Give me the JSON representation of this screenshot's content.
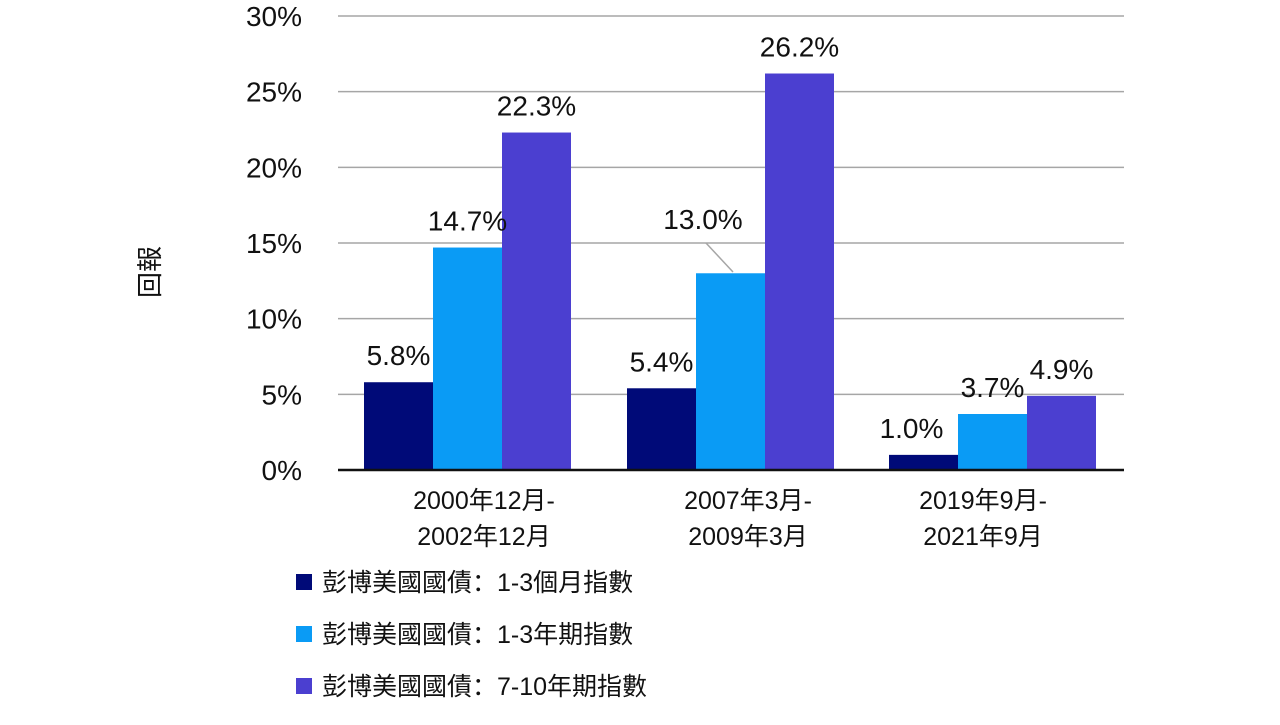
{
  "chart_data": {
    "type": "bar",
    "title": "",
    "xlabel": "",
    "ylabel": "回報",
    "ylim": [
      0,
      30
    ],
    "yticks": [
      0,
      5,
      10,
      15,
      20,
      25,
      30
    ],
    "ytick_labels": [
      "0%",
      "5%",
      "10%",
      "15%",
      "20%",
      "25%",
      "30%"
    ],
    "grid": true,
    "legend_position": "bottom",
    "categories": [
      [
        "2000年12月-",
        "2002年12月"
      ],
      [
        "2007年3月-",
        "2009年3月"
      ],
      [
        "2019年9月-",
        "2021年9月"
      ]
    ],
    "series": [
      {
        "name": "彭博美國國債：1-3個月指數",
        "color": "#000a78",
        "values": [
          5.8,
          5.4,
          1.0
        ],
        "labels": [
          "5.8%",
          "5.4%",
          "1.0%"
        ]
      },
      {
        "name": "彭博美國國債：1-3年期指數",
        "color": "#0a9bf5",
        "values": [
          14.7,
          13.0,
          3.7
        ],
        "labels": [
          "14.7%",
          "13.0%",
          "3.7%"
        ]
      },
      {
        "name": "彭博美國國債：7-10年期指數",
        "color": "#4b3fd0",
        "values": [
          22.3,
          26.2,
          4.9
        ],
        "labels": [
          "22.3%",
          "26.2%",
          "4.9%"
        ]
      }
    ]
  }
}
